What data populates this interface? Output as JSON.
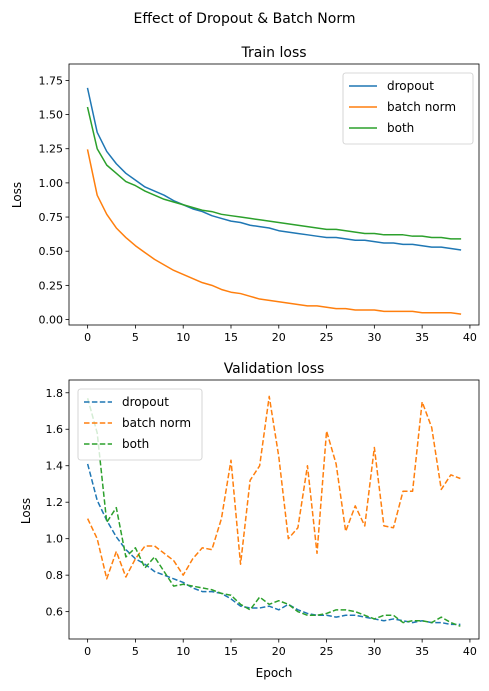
{
  "suptitle": "Effect of Dropout & Batch Norm",
  "colors": {
    "dropout": "#1f77b4",
    "batch_norm": "#ff7f0e",
    "both": "#2ca02c"
  },
  "chart_data": [
    {
      "type": "line",
      "title": "Train loss",
      "xlabel": "",
      "ylabel": "Loss",
      "xlim": [
        -1.95,
        40.95
      ],
      "ylim": [
        -0.04,
        1.87
      ],
      "xticks": [
        0,
        5,
        10,
        15,
        20,
        25,
        30,
        35,
        40
      ],
      "yticks": [
        0.0,
        0.25,
        0.5,
        0.75,
        1.0,
        1.25,
        1.5,
        1.75
      ],
      "ytick_labels": [
        "0.00",
        "0.25",
        "0.50",
        "0.75",
        "1.00",
        "1.25",
        "1.50",
        "1.75"
      ],
      "line_style": "solid",
      "legend_position": "top-right",
      "grid": false,
      "x": [
        0,
        1,
        2,
        3,
        4,
        5,
        6,
        7,
        8,
        9,
        10,
        11,
        12,
        13,
        14,
        15,
        16,
        17,
        18,
        19,
        20,
        21,
        22,
        23,
        24,
        25,
        26,
        27,
        28,
        29,
        30,
        31,
        32,
        33,
        34,
        35,
        36,
        37,
        38,
        39
      ],
      "series": [
        {
          "name": "dropout",
          "color": "#1f77b4",
          "values": [
            1.69,
            1.37,
            1.23,
            1.14,
            1.07,
            1.02,
            0.97,
            0.94,
            0.91,
            0.87,
            0.84,
            0.81,
            0.79,
            0.76,
            0.74,
            0.72,
            0.71,
            0.69,
            0.68,
            0.67,
            0.65,
            0.64,
            0.63,
            0.62,
            0.61,
            0.6,
            0.6,
            0.59,
            0.58,
            0.58,
            0.57,
            0.56,
            0.56,
            0.55,
            0.55,
            0.54,
            0.53,
            0.53,
            0.52,
            0.51
          ]
        },
        {
          "name": "batch norm",
          "color": "#ff7f0e",
          "values": [
            1.24,
            0.91,
            0.77,
            0.67,
            0.6,
            0.54,
            0.49,
            0.44,
            0.4,
            0.36,
            0.33,
            0.3,
            0.27,
            0.25,
            0.22,
            0.2,
            0.19,
            0.17,
            0.15,
            0.14,
            0.13,
            0.12,
            0.11,
            0.1,
            0.1,
            0.09,
            0.08,
            0.08,
            0.07,
            0.07,
            0.07,
            0.06,
            0.06,
            0.06,
            0.06,
            0.05,
            0.05,
            0.05,
            0.05,
            0.04
          ]
        },
        {
          "name": "both",
          "color": "#2ca02c",
          "values": [
            1.55,
            1.25,
            1.13,
            1.07,
            1.01,
            0.98,
            0.94,
            0.91,
            0.88,
            0.86,
            0.84,
            0.82,
            0.8,
            0.79,
            0.77,
            0.76,
            0.75,
            0.74,
            0.73,
            0.72,
            0.71,
            0.7,
            0.69,
            0.68,
            0.67,
            0.66,
            0.66,
            0.65,
            0.64,
            0.63,
            0.63,
            0.62,
            0.62,
            0.62,
            0.61,
            0.61,
            0.6,
            0.6,
            0.59,
            0.59
          ]
        }
      ]
    },
    {
      "type": "line",
      "title": "Validation loss",
      "xlabel": "Epoch",
      "ylabel": "Loss",
      "xlim": [
        -1.95,
        40.95
      ],
      "ylim": [
        0.45,
        1.87
      ],
      "xticks": [
        0,
        5,
        10,
        15,
        20,
        25,
        30,
        35,
        40
      ],
      "yticks": [
        0.6,
        0.8,
        1.0,
        1.2,
        1.4,
        1.6,
        1.8
      ],
      "ytick_labels": [
        "0.6",
        "0.8",
        "1.0",
        "1.2",
        "1.4",
        "1.6",
        "1.8"
      ],
      "line_style": "dashed",
      "legend_position": "top-left",
      "grid": false,
      "x": [
        0,
        1,
        2,
        3,
        4,
        5,
        6,
        7,
        8,
        9,
        10,
        11,
        12,
        13,
        14,
        15,
        16,
        17,
        18,
        19,
        20,
        21,
        22,
        23,
        24,
        25,
        26,
        27,
        28,
        29,
        30,
        31,
        32,
        33,
        34,
        35,
        36,
        37,
        38,
        39
      ],
      "series": [
        {
          "name": "dropout",
          "color": "#1f77b4",
          "values": [
            1.41,
            1.21,
            1.1,
            1.01,
            0.94,
            0.89,
            0.86,
            0.82,
            0.8,
            0.78,
            0.76,
            0.73,
            0.71,
            0.71,
            0.7,
            0.67,
            0.63,
            0.62,
            0.62,
            0.63,
            0.61,
            0.64,
            0.61,
            0.59,
            0.58,
            0.58,
            0.57,
            0.58,
            0.58,
            0.57,
            0.56,
            0.55,
            0.56,
            0.55,
            0.54,
            0.55,
            0.54,
            0.54,
            0.53,
            0.53
          ]
        },
        {
          "name": "batch norm",
          "color": "#ff7f0e",
          "values": [
            1.11,
            1.0,
            0.78,
            0.93,
            0.79,
            0.89,
            0.96,
            0.96,
            0.92,
            0.88,
            0.8,
            0.89,
            0.95,
            0.94,
            1.11,
            1.43,
            0.86,
            1.32,
            1.4,
            1.78,
            1.45,
            1.0,
            1.06,
            1.4,
            0.92,
            1.59,
            1.41,
            1.04,
            1.18,
            1.07,
            1.5,
            1.07,
            1.06,
            1.26,
            1.26,
            1.75,
            1.61,
            1.27,
            1.35,
            1.33
          ]
        },
        {
          "name": "both",
          "color": "#2ca02c",
          "values": [
            1.77,
            1.58,
            1.09,
            1.17,
            0.9,
            0.95,
            0.84,
            0.9,
            0.82,
            0.74,
            0.75,
            0.74,
            0.73,
            0.72,
            0.7,
            0.69,
            0.64,
            0.61,
            0.68,
            0.64,
            0.66,
            0.64,
            0.6,
            0.58,
            0.58,
            0.59,
            0.61,
            0.61,
            0.6,
            0.58,
            0.56,
            0.58,
            0.58,
            0.54,
            0.55,
            0.55,
            0.54,
            0.57,
            0.54,
            0.52
          ]
        }
      ]
    }
  ]
}
